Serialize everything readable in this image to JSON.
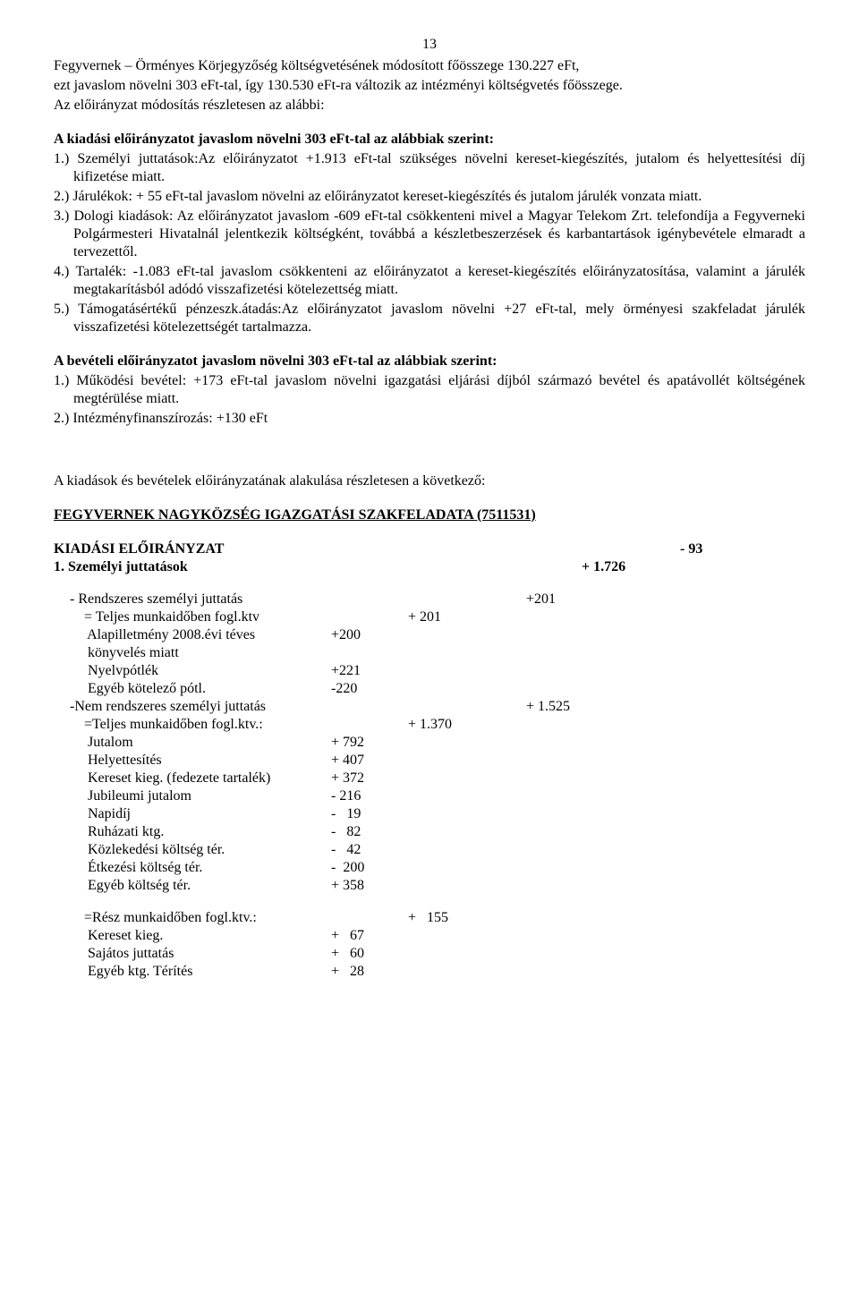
{
  "pageNumber": "13",
  "intro1": "Fegyvernek – Örményes Körjegyzőség költségvetésének módosított főösszege 130.227 eFt,",
  "intro2": "ezt javaslom növelni 303 eFt-tal, így 130.530 eFt-ra változik az intézményi költségvetés főösszege.",
  "intro3": "Az előirányzat módosítás részletesen az alábbi:",
  "headingA": "A kiadási előirányzatot javaslom növelni 303 eFt-tal az alábbiak szerint:",
  "itemsA": [
    "1.) Személyi juttatások:Az előirányzatot +1.913 eFt-tal szükséges növelni kereset-kiegészítés, jutalom és helyettesítési díj kifizetése miatt.",
    "2.) Járulékok: + 55 eFt-tal javaslom növelni az előirányzatot kereset-kiegészítés és jutalom járulék vonzata miatt.",
    "3.) Dologi kiadások: Az előirányzatot javaslom -609 eFt-tal csökkenteni mivel a Magyar Telekom Zrt. telefondíja a Fegyverneki Polgármesteri Hivatalnál jelentkezik költségként, továbbá a készletbeszerzések és karbantartások igénybevétele elmaradt a tervezettől.",
    "4.) Tartalék: -1.083 eFt-tal javaslom csökkenteni az előirányzatot a kereset-kiegészítés előirányzatosítása, valamint a járulék megtakarításból adódó visszafizetési kötelezettség miatt.",
    "5.) Támogatásértékű pénzeszk.átadás:Az előirányzatot javaslom növelni +27 eFt-tal, mely örményesi szakfeladat járulék visszafizetési kötelezettségét tartalmazza."
  ],
  "headingB": "A bevételi előirányzatot javaslom növelni 303 eFt-tal az alábbiak szerint:",
  "itemsB": [
    "1.) Működési bevétel: +173 eFt-tal javaslom növelni igazgatási eljárási díjból származó bevétel és apatávollét költségének megtérülése miatt.",
    "2.) Intézményfinanszírozás: +130 eFt"
  ],
  "transition": "A kiadások és bevételek előirányzatának alakulása részletesen a következő:",
  "headingC": "FEGYVERNEK NAGYKÖZSÉG IGAZGATÁSI SZAKFELADATA (7511531)",
  "kiadasi": {
    "label": "KIADÁSI ELŐIRÁNYZAT",
    "value": "- 93"
  },
  "szemelyi": {
    "label": "1. Személyi juttatások",
    "value": "+ 1.726"
  },
  "rows": [
    {
      "label": "- Rendszeres személyi juttatás",
      "v3": "+201",
      "labelClass": "col-label-0",
      "indent": "indent1"
    },
    {
      "label": "= Teljes munkaidőben fogl.ktv",
      "v2": "+ 201",
      "labelClass": "col-label-1",
      "indent": "indent2"
    },
    {
      "label": " Alapilletmény 2008.évi téves",
      "v1": "+200",
      "labelClass": "col-label-2",
      "indent": "indent2"
    },
    {
      "label": " könyvelés miatt",
      "labelClass": "col-label-2",
      "indent": "indent2"
    },
    {
      "label": " Nyelvpótlék",
      "v1": "+221",
      "labelClass": "col-label-2",
      "indent": "indent2"
    },
    {
      "label": " Egyéb kötelező pótl.",
      "v1": "-220",
      "labelClass": "col-label-2",
      "indent": "indent2"
    },
    {
      "label": "-Nem rendszeres személyi juttatás",
      "v3": "+ 1.525",
      "labelClass": "col-label-0",
      "indent": "indent1"
    },
    {
      "label": "=Teljes munkaidőben fogl.ktv.:",
      "v2": "+ 1.370",
      "labelClass": "col-label-1",
      "indent": "indent2"
    },
    {
      "label": " Jutalom",
      "v1": "+ 792",
      "labelClass": "col-label-2",
      "indent": "indent2"
    },
    {
      "label": " Helyettesítés",
      "v1": "+ 407",
      "labelClass": "col-label-2",
      "indent": "indent2"
    },
    {
      "label": " Kereset kieg. (fedezete tartalék)",
      "v1": "+ 372",
      "labelClass": "col-label-2",
      "indent": "indent2"
    },
    {
      "label": " Jubileumi jutalom",
      "v1": "- 216",
      "labelClass": "col-label-2",
      "indent": "indent2"
    },
    {
      "label": " Napidíj",
      "v1": "-   19",
      "labelClass": "col-label-2",
      "indent": "indent2"
    },
    {
      "label": " Ruházati ktg.",
      "v1": "-   82",
      "labelClass": "col-label-2",
      "indent": "indent2"
    },
    {
      "label": " Közlekedési költség tér.",
      "v1": "-   42",
      "labelClass": "col-label-2",
      "indent": "indent2"
    },
    {
      "label": " Étkezési költség tér.",
      "v1": "-  200",
      "labelClass": "col-label-2",
      "indent": "indent2"
    },
    {
      "label": " Egyéb költség tér.",
      "v1": "+ 358",
      "labelClass": "col-label-2",
      "indent": "indent2"
    }
  ],
  "rows2": [
    {
      "label": "=Rész munkaidőben fogl.ktv.:",
      "v2": "+   155",
      "labelClass": "col-label-1",
      "indent": "indent2"
    },
    {
      "label": " Kereset kieg.",
      "v1": "+   67",
      "labelClass": "col-label-2",
      "indent": "indent2"
    },
    {
      "label": " Sajátos juttatás",
      "v1": "+   60",
      "labelClass": "col-label-2",
      "indent": "indent2"
    },
    {
      "label": " Egyéb ktg. Térítés",
      "v1": "+   28",
      "labelClass": "col-label-2",
      "indent": "indent2"
    }
  ]
}
